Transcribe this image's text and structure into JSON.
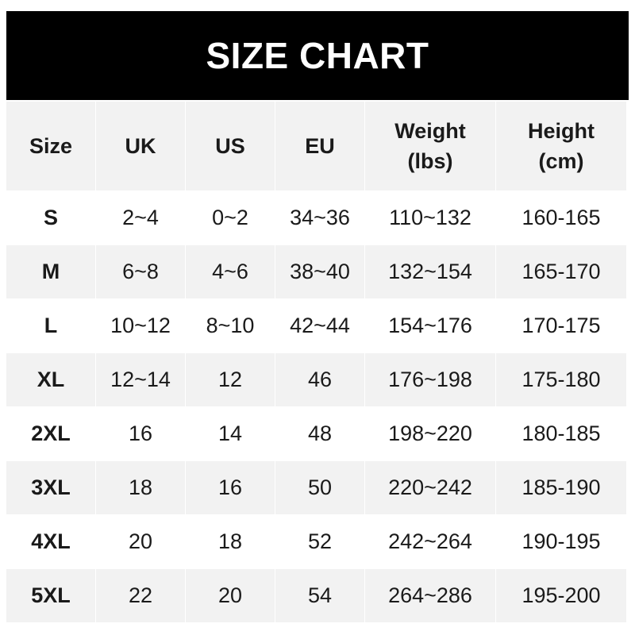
{
  "title": "SIZE CHART",
  "colors": {
    "header_bg": "#000000",
    "header_text": "#ffffff",
    "stripe": "#f2f2f2",
    "text": "#1a1a1a"
  },
  "columns": [
    {
      "line1": "Size",
      "line2": ""
    },
    {
      "line1": "UK",
      "line2": ""
    },
    {
      "line1": "US",
      "line2": ""
    },
    {
      "line1": "EU",
      "line2": ""
    },
    {
      "line1": "Weight",
      "line2": "(lbs)"
    },
    {
      "line1": "Height",
      "line2": "(cm)"
    }
  ],
  "rows": [
    [
      "S",
      "2~4",
      "0~2",
      "34~36",
      "110~132",
      "160-165"
    ],
    [
      "M",
      "6~8",
      "4~6",
      "38~40",
      "132~154",
      "165-170"
    ],
    [
      "L",
      "10~12",
      "8~10",
      "42~44",
      "154~176",
      "170-175"
    ],
    [
      "XL",
      "12~14",
      "12",
      "46",
      "176~198",
      "175-180"
    ],
    [
      "2XL",
      "16",
      "14",
      "48",
      "198~220",
      "180-185"
    ],
    [
      "3XL",
      "18",
      "16",
      "50",
      "220~242",
      "185-190"
    ],
    [
      "4XL",
      "20",
      "18",
      "52",
      "242~264",
      "190-195"
    ],
    [
      "5XL",
      "22",
      "20",
      "54",
      "264~286",
      "195-200"
    ]
  ]
}
